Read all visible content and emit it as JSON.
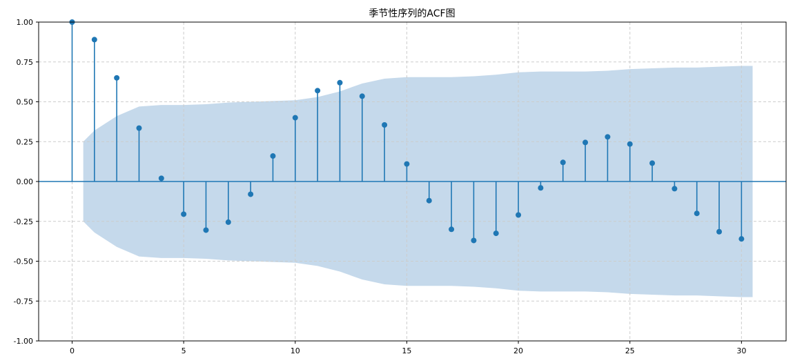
{
  "chart_data": {
    "type": "stem",
    "title": "季节性序列的ACF图",
    "xlabel": "",
    "ylabel": "",
    "xlim": [
      -1.5,
      32
    ],
    "ylim": [
      -1.0,
      1.0
    ],
    "x_ticks": [
      0,
      5,
      10,
      15,
      20,
      25,
      30
    ],
    "x_tick_labels": [
      "0",
      "5",
      "10",
      "15",
      "20",
      "25",
      "30"
    ],
    "y_ticks": [
      1.0,
      0.75,
      0.5,
      0.25,
      0.0,
      -0.25,
      -0.5,
      -0.75,
      -1.0
    ],
    "y_tick_labels": [
      "1.00",
      "0.75",
      "0.50",
      "0.25",
      "0.00",
      "-0.25",
      "-0.50",
      "-0.75",
      "-1.00"
    ],
    "grid": true,
    "grid_style": "dashed",
    "series": [
      {
        "lags": [
          0,
          1,
          2,
          3,
          4,
          5,
          6,
          7,
          8,
          9,
          10,
          11,
          12,
          13,
          14,
          15,
          16,
          17,
          18,
          19,
          20,
          21,
          22,
          23,
          24,
          25,
          26,
          27,
          28,
          29,
          30
        ],
        "values": [
          1.0,
          0.89,
          0.65,
          0.335,
          0.02,
          -0.205,
          -0.305,
          -0.255,
          -0.08,
          0.16,
          0.4,
          0.57,
          0.62,
          0.535,
          0.355,
          0.11,
          -0.12,
          -0.3,
          -0.37,
          -0.325,
          -0.21,
          -0.04,
          0.12,
          0.245,
          0.28,
          0.235,
          0.115,
          -0.045,
          -0.2,
          -0.315,
          -0.36
        ]
      }
    ],
    "confidence_band": {
      "x": [
        0.5,
        1,
        2,
        3,
        4,
        5,
        6,
        7,
        8,
        9,
        10,
        11,
        12,
        13,
        14,
        15,
        16,
        17,
        18,
        19,
        20,
        21,
        22,
        23,
        24,
        25,
        26,
        27,
        28,
        29,
        30,
        30.5
      ],
      "upper": [
        0.25,
        0.32,
        0.41,
        0.47,
        0.48,
        0.48,
        0.485,
        0.495,
        0.5,
        0.505,
        0.51,
        0.53,
        0.565,
        0.615,
        0.645,
        0.655,
        0.655,
        0.655,
        0.66,
        0.67,
        0.685,
        0.69,
        0.69,
        0.69,
        0.695,
        0.705,
        0.71,
        0.715,
        0.715,
        0.72,
        0.725,
        0.725
      ]
    },
    "colors": {
      "stem": "#1f77b4",
      "band": "#c5d9eb",
      "grid": "#cccccc",
      "axis": "#000000"
    }
  }
}
